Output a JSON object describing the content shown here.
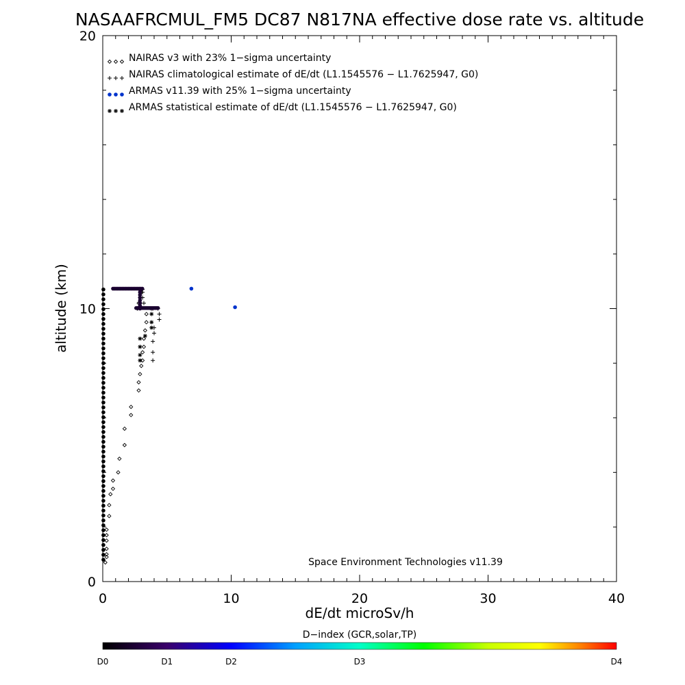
{
  "chart_data": {
    "type": "scatter",
    "title": "NASAAFRCMUL_FM5 DC87 N817NA effective dose rate vs. altitude",
    "xlabel": "dE/dt microSv/h",
    "ylabel": "altitude (km)",
    "xlim": [
      0,
      40
    ],
    "ylim": [
      0,
      20
    ],
    "x_ticks": [
      "0",
      "10",
      "20",
      "30",
      "40"
    ],
    "y_ticks": [
      "0",
      "10",
      "20"
    ],
    "legend_position": "top-left",
    "credit": "Space Environment Technologies v11.39",
    "colorbar": {
      "label": "D−index (GCR,solar,TP)",
      "ticks": [
        "D0",
        "D1",
        "D2",
        "D3",
        "D4"
      ],
      "tick_positions": [
        0,
        0.125,
        0.25,
        0.5,
        1.0
      ],
      "colors": [
        "#000000",
        "#3a006a",
        "#0000ff",
        "#00a0ff",
        "#00ffc8",
        "#00ff00",
        "#c8ff00",
        "#ffff00",
        "#ff8000",
        "#ff0000"
      ]
    },
    "series": [
      {
        "name": "NAIRAS v3 with 23% 1−sigma uncertainty",
        "marker": "diamond",
        "color": "#000000",
        "points": [
          [
            0.2,
            0.7
          ],
          [
            0.3,
            0.9
          ],
          [
            0.3,
            1.0
          ],
          [
            0.3,
            1.2
          ],
          [
            0.3,
            1.5
          ],
          [
            0.3,
            1.7
          ],
          [
            0.3,
            1.9
          ],
          [
            0.5,
            2.4
          ],
          [
            0.5,
            2.8
          ],
          [
            0.6,
            3.2
          ],
          [
            0.8,
            3.4
          ],
          [
            0.8,
            3.7
          ],
          [
            1.2,
            4.0
          ],
          [
            1.3,
            4.5
          ],
          [
            1.7,
            5.0
          ],
          [
            1.7,
            5.6
          ],
          [
            2.2,
            6.1
          ],
          [
            2.2,
            6.4
          ],
          [
            2.8,
            7.0
          ],
          [
            2.8,
            7.3
          ],
          [
            2.9,
            7.6
          ],
          [
            3.0,
            7.9
          ],
          [
            3.1,
            8.1
          ],
          [
            3.1,
            8.4
          ],
          [
            3.2,
            8.6
          ],
          [
            3.2,
            8.9
          ],
          [
            3.3,
            9.2
          ],
          [
            3.4,
            9.5
          ],
          [
            3.4,
            9.8
          ],
          [
            2.7,
            10.0
          ],
          [
            2.8,
            10.2
          ],
          [
            2.9,
            10.4
          ],
          [
            3.0,
            10.6
          ],
          [
            3.0,
            10.7
          ]
        ]
      },
      {
        "name": "NAIRAS climatological estimate of dE/dt (L1.1545576 − L1.7625947, G0)",
        "marker": "plus",
        "color": "#000000",
        "points": [
          [
            3.9,
            8.1
          ],
          [
            3.9,
            8.4
          ],
          [
            3.9,
            8.8
          ],
          [
            4.0,
            9.1
          ],
          [
            4.0,
            9.3
          ],
          [
            4.4,
            9.6
          ],
          [
            4.4,
            9.8
          ],
          [
            4.3,
            10.0
          ],
          [
            3.9,
            10.0
          ],
          [
            3.2,
            10.2
          ],
          [
            3.1,
            10.4
          ],
          [
            3.1,
            10.6
          ],
          [
            3.1,
            10.7
          ]
        ]
      },
      {
        "name": "ARMAS v11.39 with 25% 1−sigma uncertainty",
        "marker": "dot",
        "color": "#0033cc",
        "points": [
          [
            6.9,
            10.73
          ],
          [
            10.3,
            10.05
          ]
        ]
      },
      {
        "name": "ARMAS statistical estimate of dE/dt (L1.1545576 − L1.7625947, G0)",
        "marker": "asterisk",
        "color": "#000000",
        "points": [
          [
            2.9,
            8.1
          ],
          [
            2.9,
            8.3
          ],
          [
            2.9,
            8.6
          ],
          [
            2.9,
            8.9
          ],
          [
            3.3,
            9.0
          ],
          [
            3.8,
            9.3
          ],
          [
            3.8,
            9.5
          ],
          [
            3.8,
            9.8
          ],
          [
            3.8,
            10.0
          ]
        ]
      }
    ]
  }
}
